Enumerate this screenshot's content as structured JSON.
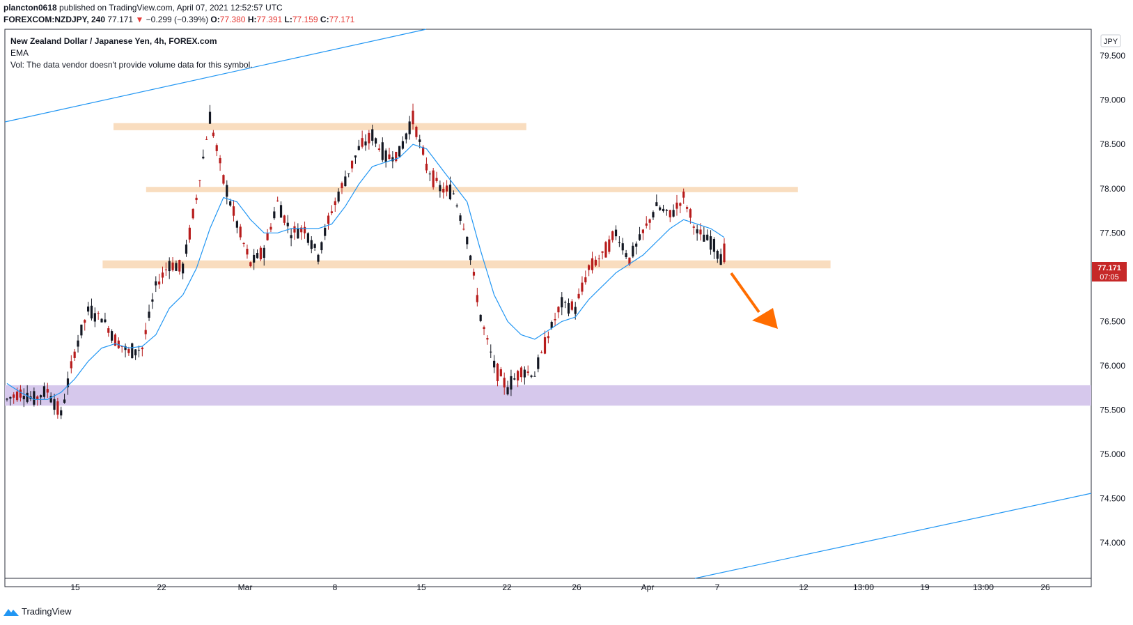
{
  "header": {
    "line1": {
      "author": "plancton0618",
      "published": "published on TradingView.com, April 07, 2021 12:52:57 UTC"
    },
    "line2": {
      "symbol": "FOREXCOM:NZDJPY, 240",
      "last": "77.171",
      "change_arrow": "▼",
      "change": "−0.299 (−0.39%)",
      "o_label": "O:",
      "o_value": "77.380",
      "h_label": "H:",
      "h_value": "77.391",
      "l_label": "L:",
      "l_value": "77.159",
      "c_label": "C:",
      "c_value": "77.171"
    }
  },
  "legend": {
    "title": "New Zealand Dollar / Japanese Yen, 4h, FOREX.com",
    "ema": "EMA",
    "vol": "Vol: The data vendor doesn't provide volume data for this symbol."
  },
  "currency_badge": "JPY",
  "price_label": {
    "price": "77.171",
    "countdown": "07:05"
  },
  "footer": {
    "brand": "TradingView"
  },
  "colors": {
    "up_candle": "#131722",
    "down_candle": "#b71c1c",
    "ema": "#2196f3",
    "zone_orange": "#f9ddbf",
    "zone_purple": "#d6c8ec",
    "trendline": "#2196f3",
    "arrow": "#ff6d00",
    "price_badge": "#c62828"
  },
  "chart_data": {
    "type": "candlestick",
    "ylim": [
      73.6,
      79.8
    ],
    "y_ticks": [
      "79.500",
      "79.000",
      "78.500",
      "78.000",
      "77.500",
      "77.000",
      "76.500",
      "76.000",
      "75.500",
      "75.000",
      "74.500",
      "74.000"
    ],
    "x_ticks": [
      "15",
      "22",
      "Mar",
      "8",
      "15",
      "22",
      "26",
      "Apr",
      "7",
      "12",
      "13:00",
      "19",
      "13:00",
      "26"
    ],
    "zones": [
      {
        "label": "resistance",
        "low": 78.66,
        "high": 78.74,
        "from": 0.1,
        "to": 0.48
      },
      {
        "label": "resistance",
        "low": 77.96,
        "high": 78.02,
        "from": 0.13,
        "to": 0.73
      },
      {
        "label": "support",
        "low": 77.1,
        "high": 77.19,
        "from": 0.09,
        "to": 0.76
      },
      {
        "label": "demand",
        "low": 75.55,
        "high": 75.78,
        "from": 0.0,
        "to": 1.0
      }
    ],
    "ohlc_keypoints": [
      [
        76.05,
        75.62
      ],
      [
        75.55,
        75.7
      ],
      [
        75.48,
        75.62
      ],
      [
        75.6,
        75.72
      ],
      [
        75.52,
        75.45
      ],
      [
        75.8,
        76.15
      ],
      [
        76.45,
        76.62
      ],
      [
        76.3,
        76.55
      ],
      [
        76.2,
        76.3
      ],
      [
        76.05,
        76.15
      ],
      [
        76.1,
        76.2
      ],
      [
        76.35,
        76.9
      ],
      [
        77.3,
        77.15
      ],
      [
        76.95,
        77.1
      ],
      [
        77.2,
        77.9
      ],
      [
        78.3,
        78.8
      ],
      [
        78.95,
        78.1
      ],
      [
        77.95,
        77.6
      ],
      [
        77.4,
        77.15
      ],
      [
        77.5,
        77.3
      ],
      [
        77.6,
        77.85
      ],
      [
        77.9,
        77.5
      ],
      [
        77.35,
        77.55
      ],
      [
        77.45,
        77.25
      ],
      [
        77.6,
        77.75
      ],
      [
        77.9,
        78.1
      ],
      [
        78.3,
        78.45
      ],
      [
        78.55,
        78.6
      ],
      [
        78.45,
        78.35
      ],
      [
        78.3,
        78.4
      ],
      [
        78.95,
        78.8
      ],
      [
        78.7,
        78.25
      ],
      [
        78.05,
        78.0
      ],
      [
        77.85,
        77.95
      ],
      [
        77.7,
        77.45
      ],
      [
        77.0,
        76.55
      ],
      [
        76.3,
        76.0
      ],
      [
        75.9,
        75.75
      ],
      [
        75.85,
        75.95
      ],
      [
        76.0,
        75.9
      ],
      [
        76.2,
        76.35
      ],
      [
        76.6,
        76.7
      ],
      [
        76.55,
        76.65
      ],
      [
        76.9,
        77.1
      ],
      [
        77.05,
        77.25
      ],
      [
        77.35,
        77.5
      ],
      [
        77.45,
        77.2
      ],
      [
        77.15,
        77.5
      ],
      [
        77.6,
        77.8
      ],
      [
        77.85,
        77.7
      ],
      [
        77.75,
        77.9
      ],
      [
        77.8,
        77.5
      ],
      [
        77.4,
        77.4
      ],
      [
        77.38,
        77.17
      ]
    ],
    "ema_keypoints": [
      75.8,
      75.7,
      75.62,
      75.62,
      75.7,
      75.85,
      76.05,
      76.2,
      76.25,
      76.2,
      76.22,
      76.35,
      76.65,
      76.8,
      77.1,
      77.55,
      77.9,
      77.85,
      77.65,
      77.5,
      77.5,
      77.55,
      77.55,
      77.55,
      77.6,
      77.8,
      78.05,
      78.25,
      78.3,
      78.35,
      78.5,
      78.45,
      78.25,
      78.05,
      77.85,
      77.3,
      76.8,
      76.5,
      76.35,
      76.3,
      76.4,
      76.5,
      76.55,
      76.75,
      76.9,
      77.05,
      77.15,
      77.25,
      77.4,
      77.55,
      77.65,
      77.6,
      77.55,
      77.45
    ]
  }
}
